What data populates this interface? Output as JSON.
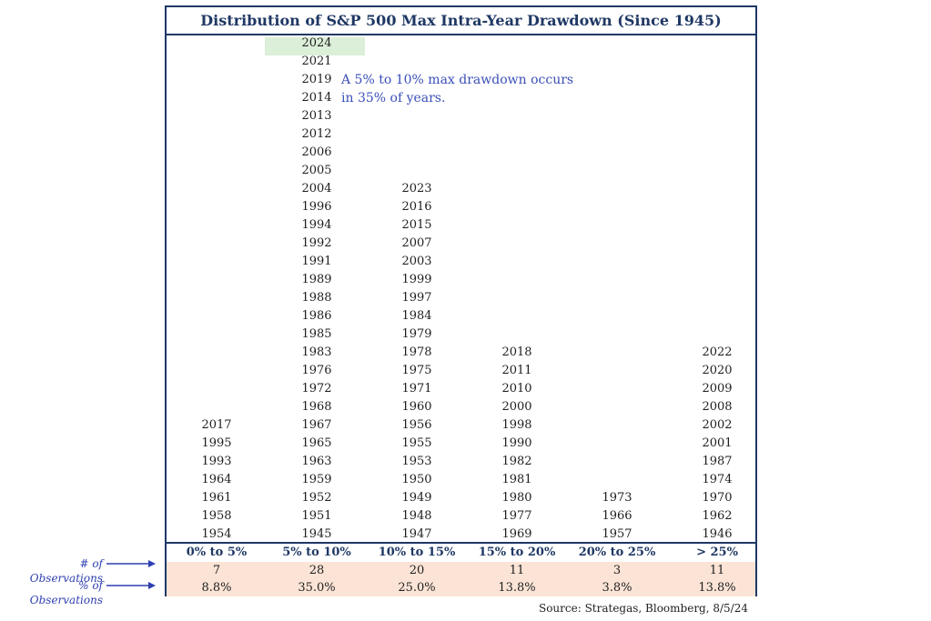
{
  "chart_data": {
    "type": "table",
    "title": "Distribution of S&P 500 Max Intra-Year Drawdown (Since 1945)",
    "categories": [
      "0% to 5%",
      "5% to 10%",
      "10% to 15%",
      "15%  to 20%",
      "20% to 25%",
      "> 25%"
    ],
    "columns": [
      [
        "2017",
        "1995",
        "1993",
        "1964",
        "1961",
        "1958",
        "1954"
      ],
      [
        "2024",
        "2021",
        "2019",
        "2014",
        "2013",
        "2012",
        "2006",
        "2005",
        "2004",
        "1996",
        "1994",
        "1992",
        "1991",
        "1989",
        "1988",
        "1986",
        "1985",
        "1983",
        "1976",
        "1972",
        "1968",
        "1967",
        "1965",
        "1963",
        "1959",
        "1952",
        "1951",
        "1945"
      ],
      [
        "2023",
        "2016",
        "2015",
        "2007",
        "2003",
        "1999",
        "1997",
        "1984",
        "1979",
        "1978",
        "1975",
        "1971",
        "1960",
        "1956",
        "1955",
        "1953",
        "1950",
        "1949",
        "1948",
        "1947"
      ],
      [
        "2018",
        "2011",
        "2010",
        "2000",
        "1998",
        "1990",
        "1982",
        "1981",
        "1980",
        "1977",
        "1969"
      ],
      [
        "1973",
        "1966",
        "1957"
      ],
      [
        "2022",
        "2020",
        "2009",
        "2008",
        "2002",
        "2001",
        "1987",
        "1974",
        "1970",
        "1962",
        "1946"
      ]
    ],
    "highlighted_year": "2024",
    "counts": [
      "7",
      "28",
      "20",
      "11",
      "3",
      "11"
    ],
    "percents": [
      "8.8%",
      "35.0%",
      "25.0%",
      "13.8%",
      "3.8%",
      "13.8%"
    ],
    "annotation": [
      "A 5% to 10% max drawdown occurs",
      "in 35% of years."
    ],
    "row_labels": {
      "count": "# of Observations",
      "percent": "% of Observations"
    },
    "source": "Source: Strategas, Bloomberg, 8/5/24"
  },
  "colors": {
    "navy": "#1f3864",
    "annotation_blue": "#3a4fb8",
    "highlight_green": "#dcefd9",
    "stats_band": "#fbe4d6"
  }
}
